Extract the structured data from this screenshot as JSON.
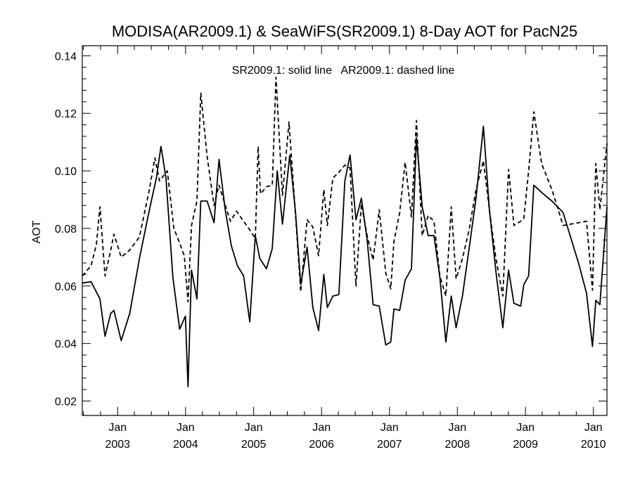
{
  "chart_data": {
    "type": "line",
    "title": "MODISA(AR2009.1) & SeaWiFS(SR2009.1) 8-Day AOT for PacN25",
    "annotation": "SR2009.1: solid line   AR2009.1: dashed line",
    "xlabel": "",
    "ylabel": "AOT",
    "xlim": [
      "2002-06-25",
      "2010-03-15"
    ],
    "ylim": [
      0.015,
      0.1435
    ],
    "grid": false,
    "legend": "none",
    "y_ticks": [
      "0.02",
      "0.04",
      "0.06",
      "0.08",
      "0.10",
      "0.12",
      "0.14"
    ],
    "x_ticks": [
      {
        "date": "2003-01-01",
        "month": "Jan",
        "year": "2003"
      },
      {
        "date": "2004-01-01",
        "month": "Jan",
        "year": "2004"
      },
      {
        "date": "2005-01-01",
        "month": "Jan",
        "year": "2005"
      },
      {
        "date": "2006-01-01",
        "month": "Jan",
        "year": "2006"
      },
      {
        "date": "2007-01-01",
        "month": "Jan",
        "year": "2007"
      },
      {
        "date": "2008-01-01",
        "month": "Jan",
        "year": "2008"
      },
      {
        "date": "2009-01-01",
        "month": "Jan",
        "year": "2009"
      },
      {
        "date": "2010-01-01",
        "month": "Jan",
        "year": "2010"
      }
    ],
    "series": [
      {
        "style": "solid",
        "color": "#000000",
        "points": [
          [
            "2002-06-25",
            0.061
          ],
          [
            "2002-08-11",
            0.0615
          ],
          [
            "2002-09-28",
            0.0555
          ],
          [
            "2002-10-25",
            0.0425
          ],
          [
            "2002-11-25",
            0.0505
          ],
          [
            "2002-12-12",
            0.0515
          ],
          [
            "2003-01-20",
            0.041
          ],
          [
            "2003-03-07",
            0.0505
          ],
          [
            "2003-04-28",
            0.0695
          ],
          [
            "2003-06-19",
            0.086
          ],
          [
            "2003-07-28",
            0.0975
          ],
          [
            "2003-08-22",
            0.1085
          ],
          [
            "2003-09-18",
            0.0975
          ],
          [
            "2003-10-25",
            0.063
          ],
          [
            "2003-11-30",
            0.045
          ],
          [
            "2003-12-31",
            0.0495
          ],
          [
            "2004-01-14",
            0.025
          ],
          [
            "2004-02-02",
            0.0655
          ],
          [
            "2004-03-02",
            0.0555
          ],
          [
            "2004-03-23",
            0.0895
          ],
          [
            "2004-04-26",
            0.0895
          ],
          [
            "2004-06-02",
            0.082
          ],
          [
            "2004-06-29",
            0.104
          ],
          [
            "2004-08-01",
            0.0865
          ],
          [
            "2004-09-03",
            0.074
          ],
          [
            "2004-10-06",
            0.067
          ],
          [
            "2004-11-08",
            0.0635
          ],
          [
            "2004-12-11",
            0.0475
          ],
          [
            "2005-01-10",
            0.0775
          ],
          [
            "2005-02-03",
            0.0695
          ],
          [
            "2005-03-11",
            0.066
          ],
          [
            "2005-04-11",
            0.073
          ],
          [
            "2005-05-08",
            0.1
          ],
          [
            "2005-06-05",
            0.0815
          ],
          [
            "2005-07-14",
            0.1055
          ],
          [
            "2005-08-14",
            0.0855
          ],
          [
            "2005-09-11",
            0.0605
          ],
          [
            "2005-10-15",
            0.0735
          ],
          [
            "2005-11-15",
            0.0525
          ],
          [
            "2005-12-16",
            0.0445
          ],
          [
            "2006-01-13",
            0.064
          ],
          [
            "2006-02-01",
            0.0525
          ],
          [
            "2006-03-03",
            0.0565
          ],
          [
            "2006-04-04",
            0.057
          ],
          [
            "2006-05-06",
            0.0965
          ],
          [
            "2006-06-03",
            0.1055
          ],
          [
            "2006-07-05",
            0.083
          ],
          [
            "2006-08-03",
            0.0905
          ],
          [
            "2006-09-03",
            0.076
          ],
          [
            "2006-10-05",
            0.0535
          ],
          [
            "2006-11-07",
            0.053
          ],
          [
            "2006-12-12",
            0.0395
          ],
          [
            "2007-01-08",
            0.0405
          ],
          [
            "2007-01-25",
            0.052
          ],
          [
            "2007-02-25",
            0.0515
          ],
          [
            "2007-03-26",
            0.062
          ],
          [
            "2007-04-29",
            0.066
          ],
          [
            "2007-05-26",
            0.1115
          ],
          [
            "2007-06-26",
            0.0875
          ],
          [
            "2007-07-28",
            0.0775
          ],
          [
            "2007-08-28",
            0.0775
          ],
          [
            "2007-09-29",
            0.063
          ],
          [
            "2007-10-31",
            0.0405
          ],
          [
            "2007-11-29",
            0.0565
          ],
          [
            "2007-12-25",
            0.0455
          ],
          [
            "2008-01-28",
            0.0565
          ],
          [
            "2008-03-04",
            0.073
          ],
          [
            "2008-04-10",
            0.0905
          ],
          [
            "2008-05-20",
            0.1155
          ],
          [
            "2008-06-21",
            0.0865
          ],
          [
            "2008-07-26",
            0.065
          ],
          [
            "2008-09-01",
            0.0455
          ],
          [
            "2008-10-02",
            0.0655
          ],
          [
            "2008-10-31",
            0.054
          ],
          [
            "2008-12-06",
            0.053
          ],
          [
            "2008-12-23",
            0.0605
          ],
          [
            "2009-01-18",
            0.0635
          ],
          [
            "2009-02-15",
            0.095
          ],
          [
            "2009-03-29",
            0.0925
          ],
          [
            "2009-05-23",
            0.0895
          ],
          [
            "2009-07-22",
            0.0855
          ],
          [
            "2009-10-15",
            0.0675
          ],
          [
            "2009-11-25",
            0.0575
          ],
          [
            "2009-12-27",
            0.039
          ],
          [
            "2010-01-14",
            0.055
          ],
          [
            "2010-02-05",
            0.0535
          ],
          [
            "2010-03-15",
            0.0875
          ]
        ]
      },
      {
        "style": "dashed",
        "color": "#000000",
        "points": [
          [
            "2002-06-25",
            0.0635
          ],
          [
            "2002-08-11",
            0.067
          ],
          [
            "2002-09-09",
            0.0745
          ],
          [
            "2002-09-28",
            0.0875
          ],
          [
            "2002-10-25",
            0.0635
          ],
          [
            "2002-11-25",
            0.0725
          ],
          [
            "2002-12-12",
            0.078
          ],
          [
            "2003-01-20",
            0.07
          ],
          [
            "2003-03-07",
            0.0725
          ],
          [
            "2003-04-28",
            0.077
          ],
          [
            "2003-06-19",
            0.093
          ],
          [
            "2003-07-20",
            0.1045
          ],
          [
            "2003-08-14",
            0.0965
          ],
          [
            "2003-09-25",
            0.1
          ],
          [
            "2003-10-30",
            0.08
          ],
          [
            "2003-12-03",
            0.0745
          ],
          [
            "2003-12-25",
            0.0705
          ],
          [
            "2004-01-14",
            0.0545
          ],
          [
            "2004-02-02",
            0.081
          ],
          [
            "2004-03-02",
            0.0895
          ],
          [
            "2004-03-23",
            0.127
          ],
          [
            "2004-04-26",
            0.105
          ],
          [
            "2004-06-02",
            0.088
          ],
          [
            "2004-06-29",
            0.095
          ],
          [
            "2004-08-04",
            0.0875
          ],
          [
            "2004-08-29",
            0.0825
          ],
          [
            "2004-10-01",
            0.086
          ],
          [
            "2004-11-08",
            0.0825
          ],
          [
            "2004-12-11",
            0.0795
          ],
          [
            "2005-01-10",
            0.0765
          ],
          [
            "2005-01-25",
            0.1085
          ],
          [
            "2005-02-07",
            0.092
          ],
          [
            "2005-03-11",
            0.0945
          ],
          [
            "2005-04-11",
            0.095
          ],
          [
            "2005-05-01",
            0.1325
          ],
          [
            "2005-06-05",
            0.0915
          ],
          [
            "2005-07-10",
            0.117
          ],
          [
            "2005-08-14",
            0.0845
          ],
          [
            "2005-09-11",
            0.058
          ],
          [
            "2005-10-15",
            0.083
          ],
          [
            "2005-11-15",
            0.0805
          ],
          [
            "2005-12-16",
            0.0705
          ],
          [
            "2006-01-13",
            0.0935
          ],
          [
            "2006-02-01",
            0.081
          ],
          [
            "2006-03-03",
            0.0975
          ],
          [
            "2006-04-04",
            0.0995
          ],
          [
            "2006-05-06",
            0.102
          ],
          [
            "2006-06-03",
            0.101
          ],
          [
            "2006-07-05",
            0.06
          ],
          [
            "2006-08-03",
            0.0885
          ],
          [
            "2006-09-03",
            0.0775
          ],
          [
            "2006-10-05",
            0.069
          ],
          [
            "2006-11-07",
            0.0865
          ],
          [
            "2006-12-12",
            0.0645
          ],
          [
            "2007-01-08",
            0.059
          ],
          [
            "2007-01-25",
            0.0755
          ],
          [
            "2007-02-25",
            0.0855
          ],
          [
            "2007-03-26",
            0.103
          ],
          [
            "2007-04-29",
            0.084
          ],
          [
            "2007-05-26",
            0.1175
          ],
          [
            "2007-06-26",
            0.0775
          ],
          [
            "2007-07-28",
            0.0845
          ],
          [
            "2007-08-28",
            0.0825
          ],
          [
            "2007-09-29",
            0.0635
          ],
          [
            "2007-10-31",
            0.0565
          ],
          [
            "2007-11-29",
            0.0875
          ],
          [
            "2007-12-25",
            0.0625
          ],
          [
            "2008-01-28",
            0.0695
          ],
          [
            "2008-03-04",
            0.0795
          ],
          [
            "2008-04-10",
            0.0935
          ],
          [
            "2008-05-20",
            0.1035
          ],
          [
            "2008-06-21",
            0.0865
          ],
          [
            "2008-07-26",
            0.0695
          ],
          [
            "2008-09-01",
            0.0565
          ],
          [
            "2008-10-02",
            0.1005
          ],
          [
            "2008-10-31",
            0.081
          ],
          [
            "2008-12-06",
            0.0825
          ],
          [
            "2008-12-23",
            0.0835
          ],
          [
            "2009-01-18",
            0.1
          ],
          [
            "2009-02-15",
            0.1205
          ],
          [
            "2009-03-29",
            0.1025
          ],
          [
            "2009-05-23",
            0.0935
          ],
          [
            "2009-07-22",
            0.081
          ],
          [
            "2009-10-15",
            0.082
          ],
          [
            "2009-11-25",
            0.0825
          ],
          [
            "2009-12-27",
            0.0585
          ],
          [
            "2010-01-14",
            0.1025
          ],
          [
            "2010-02-05",
            0.0865
          ],
          [
            "2010-03-15",
            0.1095
          ]
        ]
      }
    ]
  }
}
